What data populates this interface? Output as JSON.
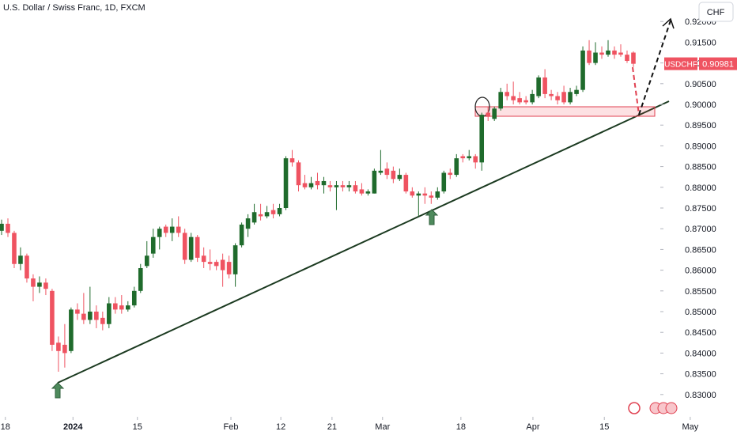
{
  "chart_data": {
    "type": "candlestick",
    "title": "U.S. Dollar / Swiss Franc, 1D, FXCM",
    "currency_button": "CHF",
    "last_price": {
      "symbol": "USDCHF",
      "value": 0.90981,
      "label": "0.90981"
    },
    "up_color": "#1f6b2c",
    "down_color": "#ef5361",
    "xlim": [
      -0.25,
      116.4
    ],
    "xticks": [
      {
        "value": 0.6,
        "label": "18"
      },
      {
        "value": 11.3,
        "label": "2024"
      },
      {
        "value": 21.5,
        "label": "15"
      },
      {
        "value": 36.3,
        "label": "Feb"
      },
      {
        "value": 44.2,
        "label": "12"
      },
      {
        "value": 52.3,
        "label": "21"
      },
      {
        "value": 60.3,
        "label": "Mar"
      },
      {
        "value": 72.7,
        "label": "18"
      },
      {
        "value": 84.1,
        "label": "Apr"
      },
      {
        "value": 95.4,
        "label": "15"
      },
      {
        "value": 109,
        "label": "May"
      }
    ],
    "ylim": [
      0.82462,
      0.92519
    ],
    "yticks": [
      {
        "value": 0.83,
        "label": "0.83000"
      },
      {
        "value": 0.835,
        "label": "0.83500"
      },
      {
        "value": 0.84,
        "label": "0.84000"
      },
      {
        "value": 0.845,
        "label": "0.84500"
      },
      {
        "value": 0.85,
        "label": "0.85000"
      },
      {
        "value": 0.855,
        "label": "0.85500"
      },
      {
        "value": 0.86,
        "label": "0.86000"
      },
      {
        "value": 0.865,
        "label": "0.86500"
      },
      {
        "value": 0.87,
        "label": "0.87000"
      },
      {
        "value": 0.875,
        "label": "0.87500"
      },
      {
        "value": 0.88,
        "label": "0.88000"
      },
      {
        "value": 0.885,
        "label": "0.88500"
      },
      {
        "value": 0.89,
        "label": "0.89000"
      },
      {
        "value": 0.895,
        "label": "0.89500"
      },
      {
        "value": 0.9,
        "label": "0.90000"
      },
      {
        "value": 0.905,
        "label": "0.90500"
      },
      {
        "value": 0.91,
        "label": "0.91000"
      },
      {
        "value": 0.915,
        "label": "0.91500"
      },
      {
        "value": 0.92,
        "label": "0.92000"
      }
    ],
    "open": [
      0.8695,
      0.8712,
      0.869,
      0.8615,
      0.8635,
      0.858,
      0.856,
      0.857,
      0.855,
      0.8425,
      0.842,
      0.8405,
      0.8505,
      0.8495,
      0.848,
      0.85,
      0.8485,
      0.847,
      0.852,
      0.8515,
      0.8505,
      0.8515,
      0.855,
      0.861,
      0.864,
      0.868,
      0.8705,
      0.869,
      0.8705,
      0.869,
      0.8625,
      0.868,
      0.8635,
      0.862,
      0.862,
      0.8625,
      0.862,
      0.859,
      0.866,
      0.87,
      0.8715,
      0.8735,
      0.873,
      0.8745,
      0.8735,
      0.875,
      0.887,
      0.886,
      0.881,
      0.88,
      0.8815,
      0.8805,
      0.8805,
      0.88,
      0.8805,
      0.88,
      0.8805,
      0.8795,
      0.8785,
      0.8785,
      0.8835,
      0.8845,
      0.884,
      0.882,
      0.883,
      0.879,
      0.878,
      0.8785,
      0.878,
      0.8775,
      0.879,
      0.8835,
      0.883,
      0.8875,
      0.887,
      0.8875,
      0.886,
      0.898,
      0.8965,
      0.899,
      0.903,
      0.902,
      0.9015,
      0.901,
      0.9005,
      0.902,
      0.9065,
      0.9025,
      0.902,
      0.903,
      0.9005,
      0.9025,
      0.9035,
      0.913,
      0.91,
      0.9125,
      0.912,
      0.913,
      0.9125,
      0.912,
      0.9125
    ],
    "high": [
      0.8722,
      0.8725,
      0.8695,
      0.8655,
      0.864,
      0.859,
      0.8585,
      0.858,
      0.8555,
      0.844,
      0.847,
      0.851,
      0.852,
      0.8545,
      0.856,
      0.8515,
      0.85,
      0.8535,
      0.8535,
      0.854,
      0.8525,
      0.856,
      0.8615,
      0.867,
      0.87,
      0.8705,
      0.871,
      0.8725,
      0.873,
      0.87,
      0.869,
      0.8685,
      0.8655,
      0.865,
      0.8625,
      0.864,
      0.8635,
      0.8665,
      0.8715,
      0.8735,
      0.876,
      0.876,
      0.8755,
      0.876,
      0.876,
      0.8875,
      0.889,
      0.8865,
      0.883,
      0.8825,
      0.8835,
      0.8825,
      0.8815,
      0.8815,
      0.8815,
      0.8815,
      0.8815,
      0.881,
      0.8795,
      0.8845,
      0.889,
      0.886,
      0.885,
      0.8845,
      0.8835,
      0.88,
      0.879,
      0.88,
      0.879,
      0.88,
      0.884,
      0.8845,
      0.888,
      0.888,
      0.889,
      0.888,
      0.898,
      0.8995,
      0.8995,
      0.904,
      0.905,
      0.9055,
      0.903,
      0.902,
      0.9035,
      0.907,
      0.9085,
      0.9035,
      0.903,
      0.9045,
      0.904,
      0.9045,
      0.914,
      0.9155,
      0.915,
      0.914,
      0.9155,
      0.914,
      0.9145,
      0.913,
      0.9128
    ],
    "low": [
      0.8685,
      0.868,
      0.8605,
      0.86,
      0.857,
      0.8525,
      0.8545,
      0.854,
      0.8405,
      0.8355,
      0.8365,
      0.84,
      0.848,
      0.847,
      0.847,
      0.846,
      0.8455,
      0.846,
      0.8495,
      0.8495,
      0.85,
      0.851,
      0.8545,
      0.8605,
      0.863,
      0.865,
      0.868,
      0.867,
      0.868,
      0.8615,
      0.862,
      0.862,
      0.8605,
      0.86,
      0.86,
      0.856,
      0.858,
      0.856,
      0.8655,
      0.868,
      0.871,
      0.872,
      0.8725,
      0.8725,
      0.873,
      0.8745,
      0.885,
      0.879,
      0.8795,
      0.8795,
      0.8795,
      0.8785,
      0.879,
      0.8745,
      0.879,
      0.879,
      0.8785,
      0.878,
      0.878,
      0.8785,
      0.883,
      0.882,
      0.881,
      0.8815,
      0.8785,
      0.8775,
      0.873,
      0.876,
      0.876,
      0.877,
      0.8785,
      0.882,
      0.8825,
      0.886,
      0.8865,
      0.8845,
      0.884,
      0.896,
      0.896,
      0.8985,
      0.901,
      0.9,
      0.9,
      0.9,
      0.9,
      0.9015,
      0.9015,
      0.901,
      0.9,
      0.9,
      0.9,
      0.902,
      0.903,
      0.9095,
      0.9095,
      0.911,
      0.9115,
      0.911,
      0.9115,
      0.91,
      0.909
    ],
    "close": [
      0.8712,
      0.869,
      0.8615,
      0.8635,
      0.858,
      0.856,
      0.857,
      0.8555,
      0.842,
      0.8405,
      0.84,
      0.8505,
      0.8495,
      0.848,
      0.85,
      0.848,
      0.847,
      0.852,
      0.8505,
      0.8505,
      0.8515,
      0.855,
      0.8605,
      0.8635,
      0.868,
      0.87,
      0.869,
      0.8705,
      0.869,
      0.8625,
      0.868,
      0.863,
      0.862,
      0.8615,
      0.861,
      0.86,
      0.859,
      0.866,
      0.871,
      0.8725,
      0.874,
      0.873,
      0.874,
      0.8735,
      0.875,
      0.887,
      0.886,
      0.8805,
      0.88,
      0.881,
      0.8805,
      0.8815,
      0.88,
      0.8805,
      0.88,
      0.8805,
      0.879,
      0.8785,
      0.879,
      0.884,
      0.884,
      0.883,
      0.882,
      0.883,
      0.879,
      0.878,
      0.8785,
      0.878,
      0.8775,
      0.879,
      0.8835,
      0.883,
      0.887,
      0.887,
      0.8875,
      0.886,
      0.8975,
      0.897,
      0.899,
      0.903,
      0.902,
      0.901,
      0.9005,
      0.9005,
      0.9025,
      0.9065,
      0.9025,
      0.902,
      0.901,
      0.9005,
      0.903,
      0.9035,
      0.913,
      0.91,
      0.9125,
      0.912,
      0.913,
      0.912,
      0.912,
      0.9105,
      0.9098
    ]
  }
}
